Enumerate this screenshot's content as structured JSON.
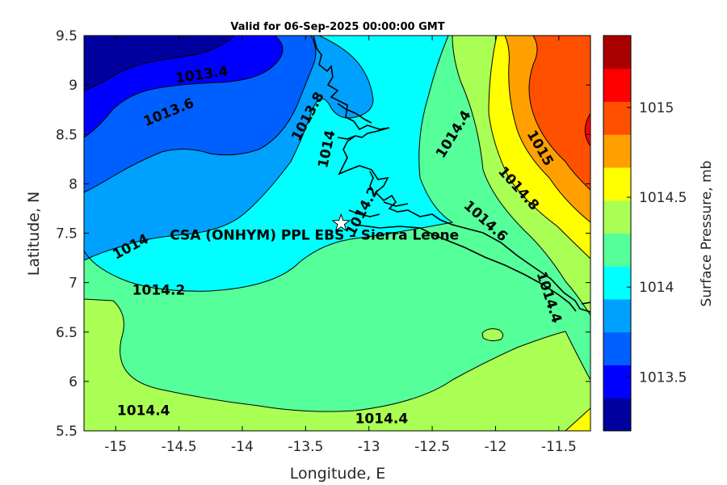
{
  "title": "Valid for 06-Sep-2025 00:00:00 GMT",
  "map": {
    "xlabel": "Longitude, E",
    "ylabel": "Latitude, N",
    "x_ticks": [
      "-15",
      "-14.5",
      "-14",
      "-13.5",
      "-13",
      "-12.5",
      "-12",
      "-11.5"
    ],
    "y_ticks": [
      "9.5",
      "9",
      "8.5",
      "8",
      "7.5",
      "7",
      "6.5",
      "6",
      "5.5"
    ],
    "x_tick_values": [
      -15,
      -14.5,
      -14,
      -13.5,
      -13,
      -12.5,
      -12,
      -11.5
    ],
    "y_tick_values": [
      9.5,
      9,
      8.5,
      8,
      7.5,
      7,
      6.5,
      6,
      5.5
    ],
    "xlim": [
      -15.25,
      -11.25
    ],
    "ylim": [
      5.5,
      9.5
    ],
    "grid": false
  },
  "station": {
    "label": "CSA (ONHYM) PPL EBS  – Sierra Leone",
    "lon": -13.22,
    "lat": 7.6,
    "marker": "white star"
  },
  "colorbar": {
    "label": "Surface Pressure, mb",
    "tick_labels": [
      "1015",
      "1014.5",
      "1014",
      "1013.5"
    ],
    "tick_values": [
      1015,
      1014.5,
      1014,
      1013.5
    ],
    "range": [
      1013.2,
      1015.4
    ],
    "step": 0.2,
    "colors": [
      "#00009f",
      "#0000ff",
      "#0060ff",
      "#00a0ff",
      "#00ffff",
      "#55ff99",
      "#aaff55",
      "#ffff00",
      "#ffa000",
      "#ff5000",
      "#ff0000",
      "#aa0000"
    ]
  },
  "contour_labels": [
    {
      "text": "1013.4",
      "lon": -14.32,
      "lat": 9.1,
      "angle": -8
    },
    {
      "text": "1013.6",
      "lon": -14.58,
      "lat": 8.72,
      "angle": -22
    },
    {
      "text": "1013.8",
      "lon": -13.48,
      "lat": 8.68,
      "angle": -62
    },
    {
      "text": "1014",
      "lon": -13.33,
      "lat": 8.35,
      "angle": -78
    },
    {
      "text": "1014",
      "lon": -14.88,
      "lat": 7.36,
      "angle": -28
    },
    {
      "text": "1014.2",
      "lon": -14.66,
      "lat": 6.92,
      "angle": 0
    },
    {
      "text": "1014.2",
      "lon": -13.05,
      "lat": 7.72,
      "angle": -62
    },
    {
      "text": "1014.4",
      "lon": -12.33,
      "lat": 8.5,
      "angle": -58
    },
    {
      "text": "1014.4",
      "lon": -11.58,
      "lat": 6.85,
      "angle": 72
    },
    {
      "text": "1014.4",
      "lon": -14.78,
      "lat": 5.7,
      "angle": 0
    },
    {
      "text": "1014.4",
      "lon": -12.9,
      "lat": 5.62,
      "angle": 0
    },
    {
      "text": "1015",
      "lon": -11.65,
      "lat": 8.36,
      "angle": 60
    },
    {
      "text": "1014.8",
      "lon": -11.82,
      "lat": 7.95,
      "angle": 48
    },
    {
      "text": "1014.6",
      "lon": -12.08,
      "lat": 7.62,
      "angle": 42
    }
  ]
}
